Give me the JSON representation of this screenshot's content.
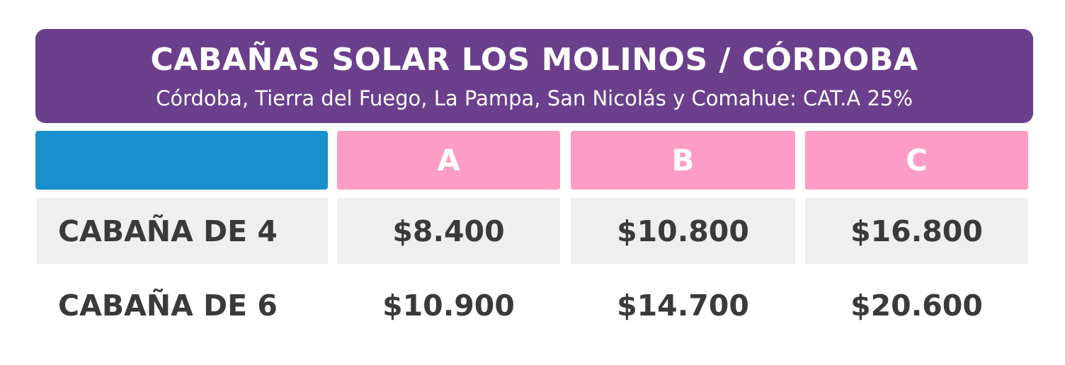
{
  "header": {
    "title": "CABAÑAS SOLAR LOS MOLINOS / CÓRDOBA",
    "subtitle": "Córdoba, Tierra del Fuego, La Pampa, San Nicolás y Comahue: CAT.A 25%"
  },
  "table": {
    "columns": [
      "A",
      "B",
      "C"
    ],
    "rows": [
      {
        "label": "CABAÑA DE 4",
        "prices": [
          "$8.400",
          "$10.800",
          "$16.800"
        ]
      },
      {
        "label": "CABAÑA DE 6",
        "prices": [
          "$10.900",
          "$14.700",
          "$20.600"
        ]
      }
    ]
  },
  "colors": {
    "header_bg": "#6b3f8c",
    "corner_bg": "#1b8fcd",
    "column_header_bg": "#fd9dc6",
    "row_shade": "#efefef",
    "text_dark": "#3a3a3a"
  }
}
